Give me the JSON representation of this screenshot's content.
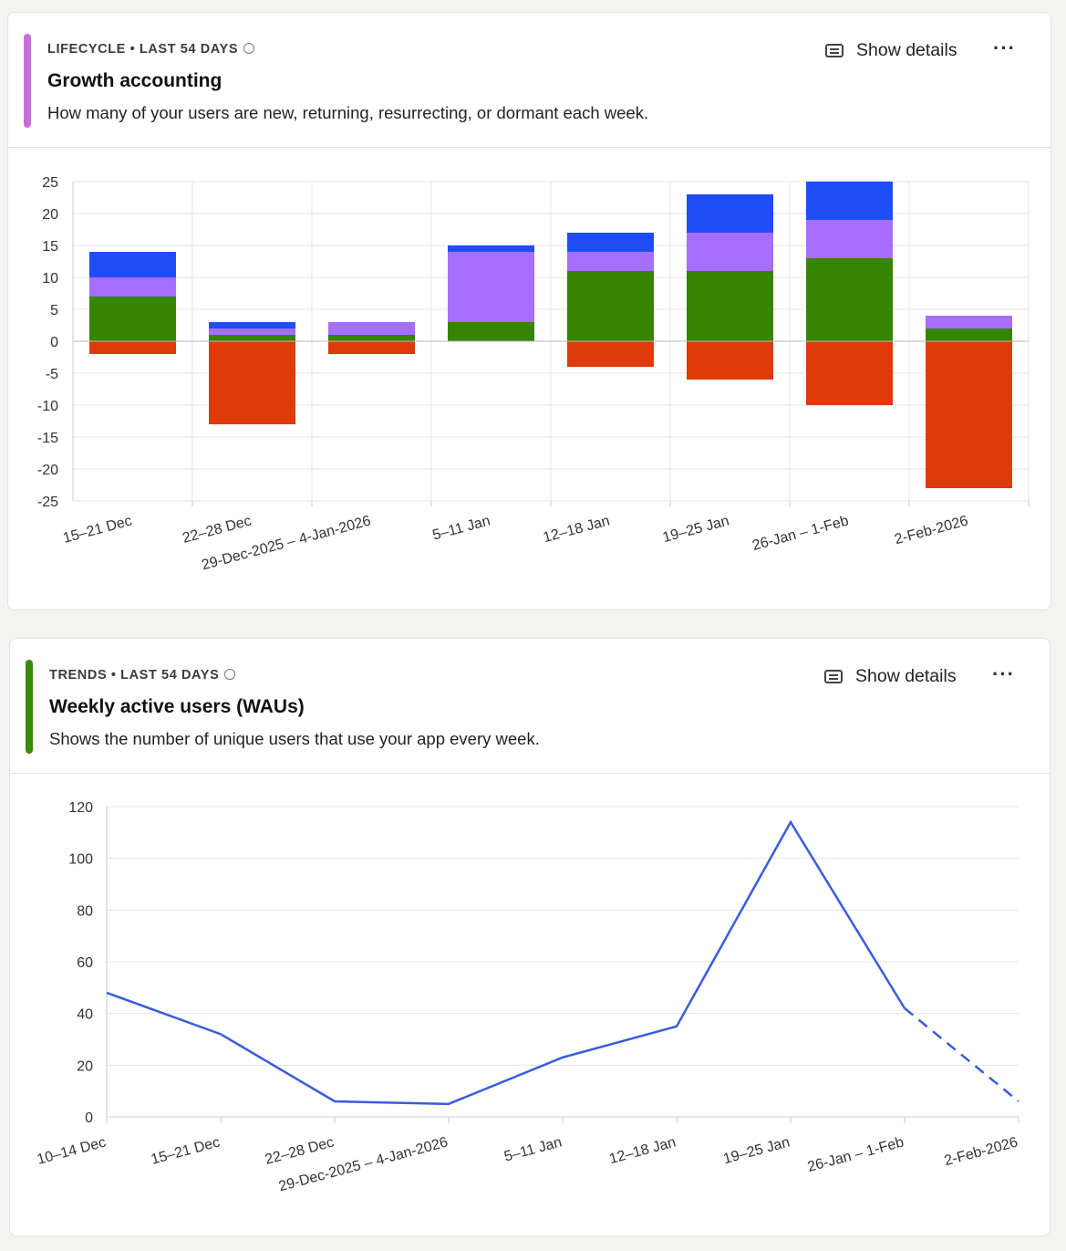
{
  "cards": [
    {
      "kicker": "LIFECYCLE • LAST 54 DAYS",
      "title": "Growth accounting",
      "description": "How many of your users are new, returning, resurrecting, or dormant each week.",
      "show_details": "Show details",
      "more": "···",
      "accent_color": "#c472d8"
    },
    {
      "kicker": "TRENDS • LAST 54 DAYS",
      "title": "Weekly active users (WAUs)",
      "description": "Shows the number of unique users that use your app every week.",
      "show_details": "Show details",
      "more": "···",
      "accent_color": "#3a8a0a"
    }
  ],
  "chart_data": [
    {
      "type": "bar",
      "stacked": true,
      "categories": [
        "15–21 Dec",
        "22–28 Dec",
        "29-Dec-2025 – 4-Jan-2026",
        "5–11 Jan",
        "12–18 Jan",
        "19–25 Jan",
        "26-Jan – 1-Feb",
        "2-Feb-2026"
      ],
      "series": [
        {
          "color": "#368400",
          "values": [
            7,
            1,
            1,
            3,
            11,
            11,
            13,
            2
          ]
        },
        {
          "color": "#a56eff",
          "values": [
            3,
            1,
            2,
            11,
            3,
            6,
            6,
            2
          ]
        },
        {
          "color": "#1f4ef5",
          "values": [
            4,
            1,
            0,
            1,
            3,
            6,
            6,
            0
          ]
        },
        {
          "color": "#de3a0a",
          "values": [
            -2,
            -13,
            -2,
            0,
            -4,
            -6,
            -10,
            -23
          ]
        }
      ],
      "ylim": [
        -25,
        25
      ],
      "yticks": [
        25,
        20,
        15,
        10,
        5,
        0,
        -5,
        -10,
        -15,
        -20,
        -25
      ],
      "grid": true
    },
    {
      "type": "line",
      "categories": [
        "10–14 Dec",
        "15–21 Dec",
        "22–28 Dec",
        "29-Dec-2025 – 4-Jan-2026",
        "5–11 Jan",
        "12–18 Jan",
        "19–25 Jan",
        "26-Jan – 1-Feb",
        "2-Feb-2026"
      ],
      "values": [
        48,
        32,
        6,
        5,
        23,
        35,
        114,
        42,
        6
      ],
      "incomplete_last_segment": true,
      "color": "#3a5be0",
      "ylim": [
        0,
        120
      ],
      "yticks": [
        120,
        100,
        80,
        60,
        40,
        20,
        0
      ],
      "grid": true
    }
  ]
}
